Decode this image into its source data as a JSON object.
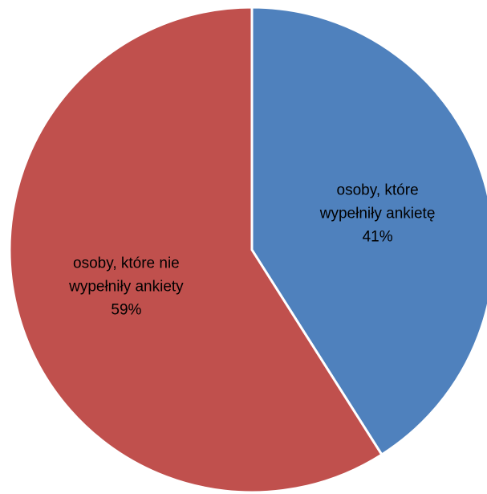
{
  "chart_data": {
    "type": "pie",
    "title": "",
    "start_angle_deg": 0,
    "direction": "clockwise",
    "legend": "none",
    "slices": [
      {
        "name": "osoby, które wypełniły ankietę",
        "value": 41,
        "label_lines": [
          "osoby, które",
          "wypełniły ankietę",
          "41%"
        ],
        "color": "#4F81BD"
      },
      {
        "name": "osoby, które nie wypełniły ankiety",
        "value": 59,
        "label_lines": [
          "osoby, które nie",
          "wypełniły ankiety",
          "59%"
        ],
        "color": "#C0504D"
      }
    ]
  }
}
